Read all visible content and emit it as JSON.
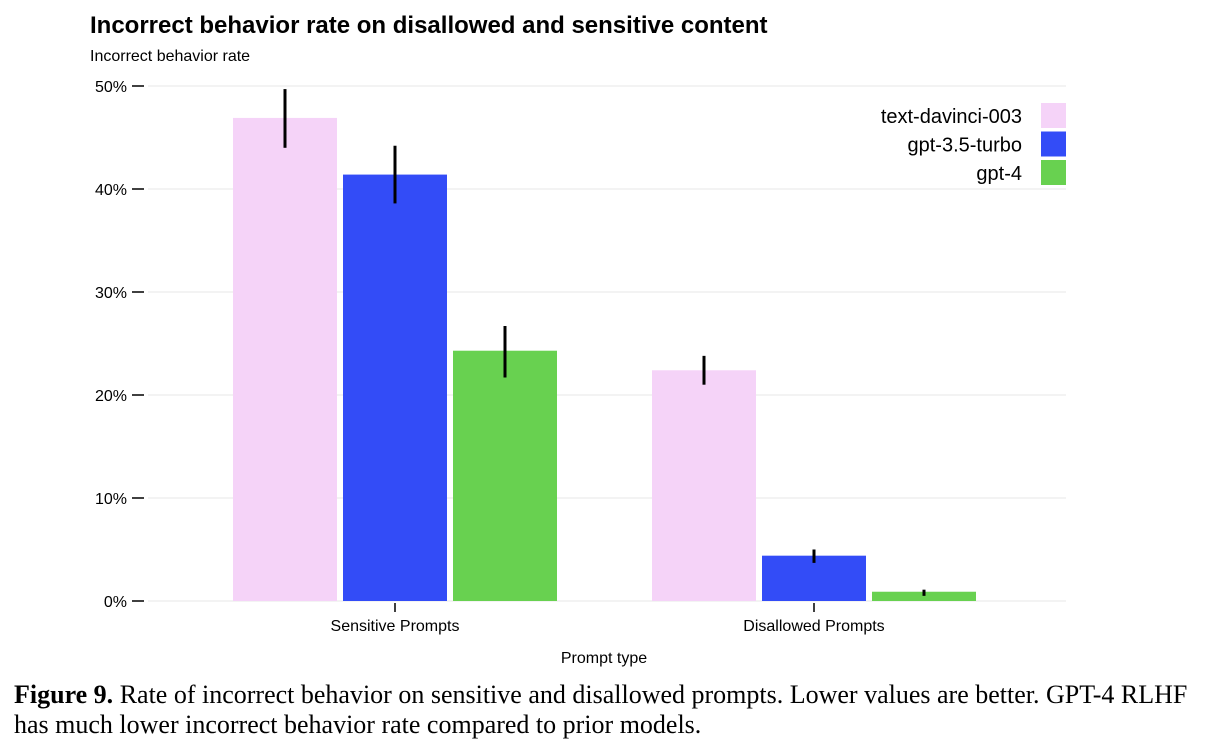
{
  "chart_data": {
    "type": "bar",
    "title": "Incorrect behavior rate on disallowed and sensitive content",
    "ylabel": "Incorrect behavior rate",
    "xlabel": "Prompt type",
    "categories": [
      "Sensitive Prompts",
      "Disallowed Prompts"
    ],
    "ylim": [
      0,
      50
    ],
    "yticks": [
      0,
      10,
      20,
      30,
      40,
      50
    ],
    "ytick_labels": [
      "0%",
      "10%",
      "20%",
      "30%",
      "40%",
      "50%"
    ],
    "grid": true,
    "legend_position": "top-right",
    "series": [
      {
        "name": "text-davinci-003",
        "color": "#F5D3F8",
        "values": [
          46.9,
          22.4
        ],
        "error_low": [
          44.0,
          21.0
        ],
        "error_high": [
          49.7,
          23.8
        ]
      },
      {
        "name": "gpt-3.5-turbo",
        "color": "#334CF7",
        "values": [
          41.4,
          4.4
        ],
        "error_low": [
          38.6,
          3.7
        ],
        "error_high": [
          44.2,
          5.0
        ]
      },
      {
        "name": "gpt-4",
        "color": "#68D150",
        "values": [
          24.3,
          0.9
        ],
        "error_low": [
          21.7,
          0.5
        ],
        "error_high": [
          26.7,
          1.1
        ]
      }
    ]
  },
  "caption": {
    "figure_label": "Figure 9.",
    "text": "Rate of incorrect behavior on sensitive and disallowed prompts. Lower values are better. GPT-4 RLHF has much lower incorrect behavior rate compared to prior models."
  }
}
